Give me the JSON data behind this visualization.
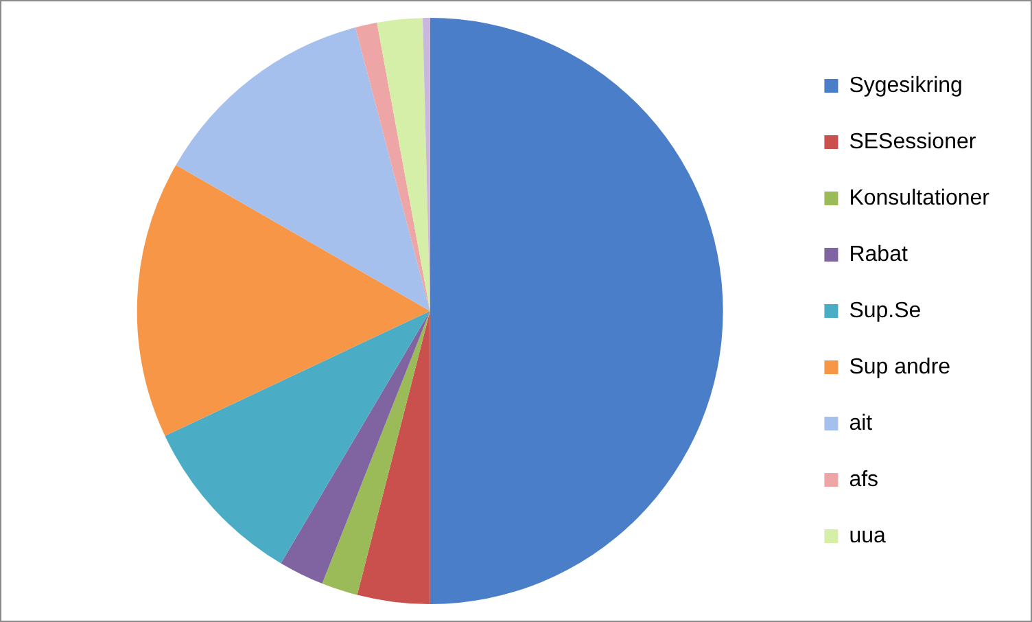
{
  "chart_data": {
    "type": "pie",
    "categories": [
      "Sygesikring",
      "SESessioner",
      "Konsultationer",
      "Rabat",
      "Sup.Se",
      "Sup andre",
      "ait",
      "afs",
      "uua",
      null
    ],
    "values": [
      50,
      4,
      2,
      2.5,
      9.5,
      15.3,
      12.6,
      1.2,
      2.5,
      0.4
    ],
    "colors": [
      "#4a7ec8",
      "#c9504d",
      "#9bbb59",
      "#8064a2",
      "#4bacc6",
      "#f79646",
      "#a5c0ec",
      "#eda5a5",
      "#d5efa8",
      "#c8b8e0"
    ],
    "legend": "right"
  }
}
